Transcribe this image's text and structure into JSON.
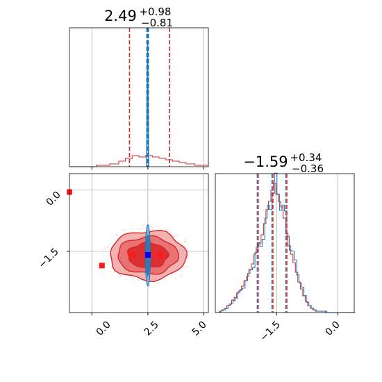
{
  "chart_data": {
    "type": "corner",
    "parameters": [
      {
        "title_value": "2.49",
        "title_plus": "+0.98",
        "title_minus": "−0.81",
        "range": [
          -1.0,
          5.2
        ],
        "ticks": [
          0.0,
          2.5,
          5.0
        ],
        "tick_labels": [
          "0.0",
          "2.5",
          "5.0"
        ],
        "quantiles_red": [
          1.68,
          2.49,
          3.47
        ],
        "quantiles_blue": [
          2.45,
          2.49,
          2.53
        ]
      },
      {
        "title_value": "−1.59",
        "title_plus": "+0.34",
        "title_minus": "−0.36",
        "range": [
          -3.0,
          0.4
        ],
        "ticks": [
          -1.5,
          0.0
        ],
        "tick_labels": [
          "−1.5",
          "0.0"
        ],
        "quantiles_red": [
          -1.95,
          -1.59,
          -1.25
        ],
        "quantiles_blue": [
          -1.95,
          -1.59,
          -1.25
        ]
      }
    ],
    "series": [
      {
        "color": "#d62728"
      },
      {
        "color": "#1f77b4"
      }
    ],
    "marginal_red_0": [
      [
        -1.0,
        0.0
      ],
      [
        0.2,
        0.01
      ],
      [
        0.8,
        0.02
      ],
      [
        1.2,
        0.04
      ],
      [
        1.5,
        0.06
      ],
      [
        1.8,
        0.08
      ],
      [
        2.1,
        0.07
      ],
      [
        2.4,
        0.08
      ],
      [
        2.7,
        0.07
      ],
      [
        3.0,
        0.06
      ],
      [
        3.3,
        0.05
      ],
      [
        3.6,
        0.04
      ],
      [
        3.9,
        0.03
      ],
      [
        4.2,
        0.02
      ],
      [
        4.6,
        0.01
      ],
      [
        5.2,
        0.0
      ]
    ],
    "marginal_blue_0_peak": 2.49,
    "marginal_1": [
      [
        -2.96,
        0.0
      ],
      [
        -2.9,
        0.01
      ],
      [
        -2.84,
        0.02
      ],
      [
        -2.78,
        0.03
      ],
      [
        -2.72,
        0.05
      ],
      [
        -2.66,
        0.06
      ],
      [
        -2.6,
        0.09
      ],
      [
        -2.54,
        0.11
      ],
      [
        -2.48,
        0.14
      ],
      [
        -2.42,
        0.16
      ],
      [
        -2.36,
        0.19
      ],
      [
        -2.3,
        0.23
      ],
      [
        -2.24,
        0.26
      ],
      [
        -2.18,
        0.31
      ],
      [
        -2.12,
        0.35
      ],
      [
        -2.06,
        0.42
      ],
      [
        -2.0,
        0.47
      ],
      [
        -1.94,
        0.5
      ],
      [
        -1.88,
        0.56
      ],
      [
        -1.82,
        0.64
      ],
      [
        -1.76,
        0.74
      ],
      [
        -1.7,
        0.8
      ],
      [
        -1.64,
        0.88
      ],
      [
        -1.58,
        0.93
      ],
      [
        -1.52,
        0.85
      ],
      [
        -1.46,
        0.8
      ],
      [
        -1.4,
        0.76
      ],
      [
        -1.34,
        0.68
      ],
      [
        -1.28,
        0.57
      ],
      [
        -1.22,
        0.48
      ],
      [
        -1.16,
        0.42
      ],
      [
        -1.1,
        0.36
      ],
      [
        -1.04,
        0.29
      ],
      [
        -0.98,
        0.22
      ],
      [
        -0.92,
        0.17
      ],
      [
        -0.86,
        0.12
      ],
      [
        -0.8,
        0.08
      ],
      [
        -0.74,
        0.05
      ],
      [
        -0.68,
        0.03
      ],
      [
        -0.62,
        0.02
      ],
      [
        -0.56,
        0.01
      ],
      [
        -0.3,
        0.0
      ],
      [
        0.4,
        0.0
      ]
    ],
    "scatter_red": [
      [
        -1.0,
        -0.05
      ],
      [
        0.45,
        -1.85
      ],
      [
        1.8,
        -1.58
      ],
      [
        3.05,
        -1.6
      ]
    ],
    "scatter_blue": [
      [
        2.5,
        -1.59
      ]
    ],
    "contour_red": {
      "center": [
        2.5,
        -1.6
      ],
      "radii": [
        [
          1.7,
          0.6
        ],
        [
          1.35,
          0.45
        ],
        [
          0.9,
          0.3
        ]
      ]
    },
    "contour_blue": {
      "center": [
        2.5,
        -1.6
      ],
      "radii": [
        [
          0.11,
          0.75
        ],
        [
          0.07,
          0.5
        ]
      ]
    },
    "grid": true
  }
}
